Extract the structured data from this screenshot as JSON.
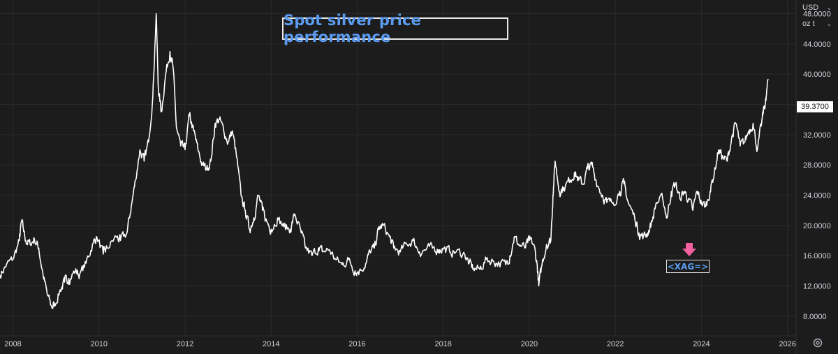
{
  "title": "Spot silver price performance",
  "controls": {
    "currency": "USD",
    "unit": "oz t"
  },
  "last_price_label": "39.3700",
  "annotation_label": "<XAG=>",
  "colors": {
    "background": "#1c1c1c",
    "line": "#ffffff",
    "title": "#5b9cf0",
    "arrow": "#f0609e",
    "grid": "#2a2a2a"
  },
  "icons": {
    "settings": "gear-icon",
    "marker": "down-arrow-icon",
    "dropdown": "chevron-down-icon"
  },
  "chart_data": {
    "type": "line",
    "title": "Spot silver price performance",
    "xlabel": "",
    "ylabel": "",
    "x_ticks": [
      2008,
      2010,
      2012,
      2014,
      2016,
      2018,
      2020,
      2022,
      2024,
      2026
    ],
    "x_tick_labels": [
      "2008",
      "2010",
      "2012",
      "2014",
      "2016",
      "2018",
      "2020",
      "2022",
      "2024",
      "2026"
    ],
    "y_ticks": [
      8,
      12,
      16,
      20,
      24,
      28,
      32,
      36,
      40,
      44,
      48
    ],
    "y_tick_labels": [
      "8.0000",
      "12.0000",
      "16.0000",
      "20.0000",
      "24.0000",
      "28.0000",
      "32.0000",
      "36.0000",
      "40.0000",
      "44.0000",
      "48.0000"
    ],
    "xlim": [
      2007.7,
      2026.2
    ],
    "ylim": [
      5.4,
      49.8
    ],
    "grid": true,
    "series": [
      {
        "values": [
          [
            2007.7,
            13.4
          ],
          [
            2007.85,
            14.8
          ],
          [
            2008.0,
            15.5
          ],
          [
            2008.15,
            18.0
          ],
          [
            2008.2,
            20.5
          ],
          [
            2008.3,
            18.0
          ],
          [
            2008.4,
            17.5
          ],
          [
            2008.5,
            18.2
          ],
          [
            2008.6,
            17.0
          ],
          [
            2008.7,
            13.5
          ],
          [
            2008.8,
            10.8
          ],
          [
            2008.9,
            9.2
          ],
          [
            2008.97,
            9.5
          ],
          [
            2009.1,
            11.5
          ],
          [
            2009.2,
            12.5
          ],
          [
            2009.3,
            13.0
          ],
          [
            2009.45,
            14.0
          ],
          [
            2009.55,
            13.5
          ],
          [
            2009.7,
            15.0
          ],
          [
            2009.85,
            17.5
          ],
          [
            2009.95,
            18.5
          ],
          [
            2010.1,
            16.2
          ],
          [
            2010.2,
            17.0
          ],
          [
            2010.4,
            18.5
          ],
          [
            2010.5,
            18.0
          ],
          [
            2010.65,
            19.0
          ],
          [
            2010.75,
            22.5
          ],
          [
            2010.85,
            26.0
          ],
          [
            2010.95,
            30.0
          ],
          [
            2011.05,
            28.5
          ],
          [
            2011.15,
            31.0
          ],
          [
            2011.25,
            37.0
          ],
          [
            2011.33,
            48.0
          ],
          [
            2011.38,
            38.0
          ],
          [
            2011.45,
            35.0
          ],
          [
            2011.55,
            40.0
          ],
          [
            2011.65,
            43.0
          ],
          [
            2011.72,
            41.0
          ],
          [
            2011.8,
            33.0
          ],
          [
            2011.9,
            30.5
          ],
          [
            2012.0,
            30.0
          ],
          [
            2012.1,
            34.5
          ],
          [
            2012.2,
            32.5
          ],
          [
            2012.3,
            30.0
          ],
          [
            2012.4,
            28.0
          ],
          [
            2012.5,
            27.5
          ],
          [
            2012.6,
            28.5
          ],
          [
            2012.7,
            33.5
          ],
          [
            2012.8,
            34.0
          ],
          [
            2012.9,
            32.5
          ],
          [
            2013.0,
            31.0
          ],
          [
            2013.1,
            32.5
          ],
          [
            2013.2,
            29.0
          ],
          [
            2013.3,
            24.0
          ],
          [
            2013.4,
            22.0
          ],
          [
            2013.5,
            19.5
          ],
          [
            2013.6,
            21.0
          ],
          [
            2013.7,
            24.0
          ],
          [
            2013.8,
            22.0
          ],
          [
            2013.9,
            20.5
          ],
          [
            2014.0,
            19.5
          ],
          [
            2014.15,
            21.0
          ],
          [
            2014.3,
            19.8
          ],
          [
            2014.45,
            19.5
          ],
          [
            2014.55,
            21.5
          ],
          [
            2014.7,
            19.0
          ],
          [
            2014.8,
            17.0
          ],
          [
            2014.95,
            16.0
          ],
          [
            2015.1,
            17.0
          ],
          [
            2015.2,
            16.5
          ],
          [
            2015.35,
            16.8
          ],
          [
            2015.5,
            15.5
          ],
          [
            2015.65,
            14.8
          ],
          [
            2015.8,
            15.5
          ],
          [
            2015.95,
            14.0
          ],
          [
            2016.05,
            14.0
          ],
          [
            2016.2,
            15.0
          ],
          [
            2016.3,
            16.5
          ],
          [
            2016.4,
            17.0
          ],
          [
            2016.5,
            19.5
          ],
          [
            2016.6,
            20.0
          ],
          [
            2016.75,
            18.5
          ],
          [
            2016.85,
            17.0
          ],
          [
            2017.0,
            16.5
          ],
          [
            2017.15,
            17.5
          ],
          [
            2017.3,
            18.0
          ],
          [
            2017.45,
            16.5
          ],
          [
            2017.6,
            16.8
          ],
          [
            2017.75,
            17.0
          ],
          [
            2017.9,
            16.8
          ],
          [
            2018.0,
            17.0
          ],
          [
            2018.15,
            16.5
          ],
          [
            2018.3,
            16.5
          ],
          [
            2018.5,
            16.2
          ],
          [
            2018.6,
            15.0
          ],
          [
            2018.7,
            14.3
          ],
          [
            2018.85,
            14.2
          ],
          [
            2019.0,
            15.5
          ],
          [
            2019.15,
            15.3
          ],
          [
            2019.3,
            15.0
          ],
          [
            2019.45,
            14.8
          ],
          [
            2019.55,
            16.0
          ],
          [
            2019.65,
            18.5
          ],
          [
            2019.75,
            17.5
          ],
          [
            2019.9,
            17.0
          ],
          [
            2020.0,
            18.0
          ],
          [
            2020.1,
            17.5
          ],
          [
            2020.18,
            15.0
          ],
          [
            2020.22,
            12.0
          ],
          [
            2020.3,
            15.0
          ],
          [
            2020.4,
            17.5
          ],
          [
            2020.5,
            18.0
          ],
          [
            2020.55,
            24.0
          ],
          [
            2020.6,
            28.5
          ],
          [
            2020.7,
            24.5
          ],
          [
            2020.8,
            25.0
          ],
          [
            2020.95,
            26.0
          ],
          [
            2021.05,
            27.0
          ],
          [
            2021.15,
            26.0
          ],
          [
            2021.25,
            25.5
          ],
          [
            2021.35,
            27.5
          ],
          [
            2021.45,
            28.0
          ],
          [
            2021.55,
            26.0
          ],
          [
            2021.7,
            24.0
          ],
          [
            2021.8,
            23.0
          ],
          [
            2021.95,
            23.0
          ],
          [
            2022.1,
            24.5
          ],
          [
            2022.2,
            25.5
          ],
          [
            2022.3,
            23.0
          ],
          [
            2022.45,
            21.0
          ],
          [
            2022.55,
            19.0
          ],
          [
            2022.65,
            18.5
          ],
          [
            2022.75,
            19.0
          ],
          [
            2022.85,
            20.5
          ],
          [
            2022.95,
            23.0
          ],
          [
            2023.1,
            23.5
          ],
          [
            2023.2,
            21.0
          ],
          [
            2023.3,
            24.5
          ],
          [
            2023.4,
            25.5
          ],
          [
            2023.5,
            23.5
          ],
          [
            2023.6,
            24.5
          ],
          [
            2023.7,
            23.5
          ],
          [
            2023.8,
            22.0
          ],
          [
            2023.9,
            24.5
          ],
          [
            2024.0,
            23.0
          ],
          [
            2024.1,
            22.5
          ],
          [
            2024.2,
            24.5
          ],
          [
            2024.3,
            27.0
          ],
          [
            2024.4,
            30.0
          ],
          [
            2024.5,
            29.0
          ],
          [
            2024.6,
            28.5
          ],
          [
            2024.7,
            31.5
          ],
          [
            2024.8,
            33.5
          ],
          [
            2024.9,
            30.5
          ],
          [
            2025.0,
            31.0
          ],
          [
            2025.1,
            32.5
          ],
          [
            2025.2,
            33.5
          ],
          [
            2025.3,
            30.0
          ],
          [
            2025.4,
            33.5
          ],
          [
            2025.45,
            35.5
          ],
          [
            2025.5,
            36.5
          ],
          [
            2025.55,
            39.37
          ]
        ]
      }
    ],
    "last_value": 39.37,
    "annotation": {
      "label": "<XAG=>",
      "x": 2023.8,
      "y": 17.5
    }
  }
}
